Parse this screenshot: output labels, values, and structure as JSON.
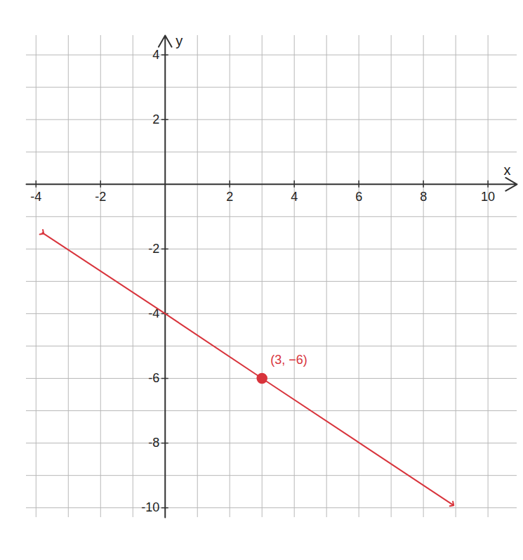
{
  "chart_data": {
    "type": "line",
    "xlabel": "x",
    "ylabel": "y",
    "x": [
      -3.8,
      0,
      3,
      8.9
    ],
    "series": [
      {
        "values": [
          -1.5,
          -4,
          -6,
          -9.9
        ],
        "color": "#d8343c",
        "marker": "arrow"
      }
    ],
    "annotations": [
      {
        "x": 3,
        "y": -6,
        "label": "(3, −6)"
      }
    ],
    "xlim": [
      -4.3,
      10.9
    ],
    "ylim": [
      -10.3,
      4.6
    ],
    "xticks": [
      -4,
      -2,
      2,
      4,
      6,
      8,
      10
    ],
    "yticks": [
      -10,
      -8,
      -6,
      -4,
      -2,
      2,
      4
    ],
    "grid": true
  }
}
